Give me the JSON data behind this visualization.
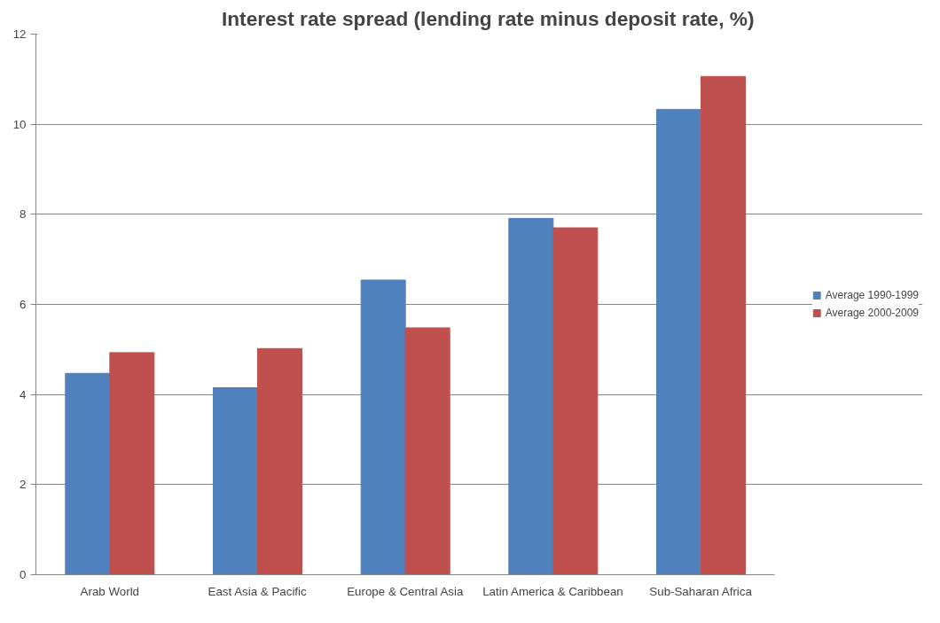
{
  "chart_data": {
    "type": "bar",
    "title": "Interest rate spread (lending rate minus deposit rate, %)",
    "categories": [
      "Arab World",
      "East Asia & Pacific",
      "Europe & Central Asia",
      "Latin America & Caribbean",
      "Sub-Saharan Africa"
    ],
    "series": [
      {
        "name": "Average 1990-1999",
        "color": "#4f81bd",
        "values": [
          4.47,
          4.15,
          6.54,
          7.91,
          10.33
        ]
      },
      {
        "name": "Average 2000-2009",
        "color": "#c0504d",
        "values": [
          4.93,
          5.02,
          5.48,
          7.7,
          11.06
        ]
      }
    ],
    "ylim": [
      0,
      12
    ],
    "yticks": [
      0,
      2,
      4,
      6,
      8,
      10,
      12
    ],
    "grid": "y",
    "legend": "right"
  }
}
